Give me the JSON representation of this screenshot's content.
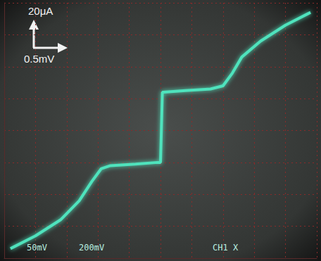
{
  "chart_data": {
    "type": "line",
    "color": "#4fe3bd",
    "grid": true,
    "tick_labels": false,
    "annotations": [
      "20μA",
      "0.5mV",
      "50mV",
      "200mV",
      "CH1 X"
    ],
    "x": [
      -2.4,
      -2.0,
      -1.6,
      -1.3,
      -1.1,
      -0.95,
      -0.8,
      -0.4,
      -0.05,
      0,
      0.03,
      0.05,
      0.4,
      0.8,
      1.0,
      1.15,
      1.3,
      1.6,
      2.0,
      2.4
    ],
    "values": [
      -74,
      -66,
      -56,
      -44,
      -32,
      -24,
      -22,
      -21,
      -20,
      -20,
      24,
      24,
      25,
      26,
      28,
      36,
      46,
      56,
      66,
      74
    ],
    "xlim": [
      -2.5,
      2.5
    ],
    "xticks": [
      -2.5,
      -2.0,
      -1.5,
      -1.0,
      -0.5,
      0,
      0.5,
      1.0,
      1.5,
      2.0,
      2.5
    ],
    "ylim": [
      -80,
      80
    ],
    "yticks": [
      -80,
      -60,
      -40,
      -20,
      0,
      20,
      40,
      60,
      80
    ]
  }
}
